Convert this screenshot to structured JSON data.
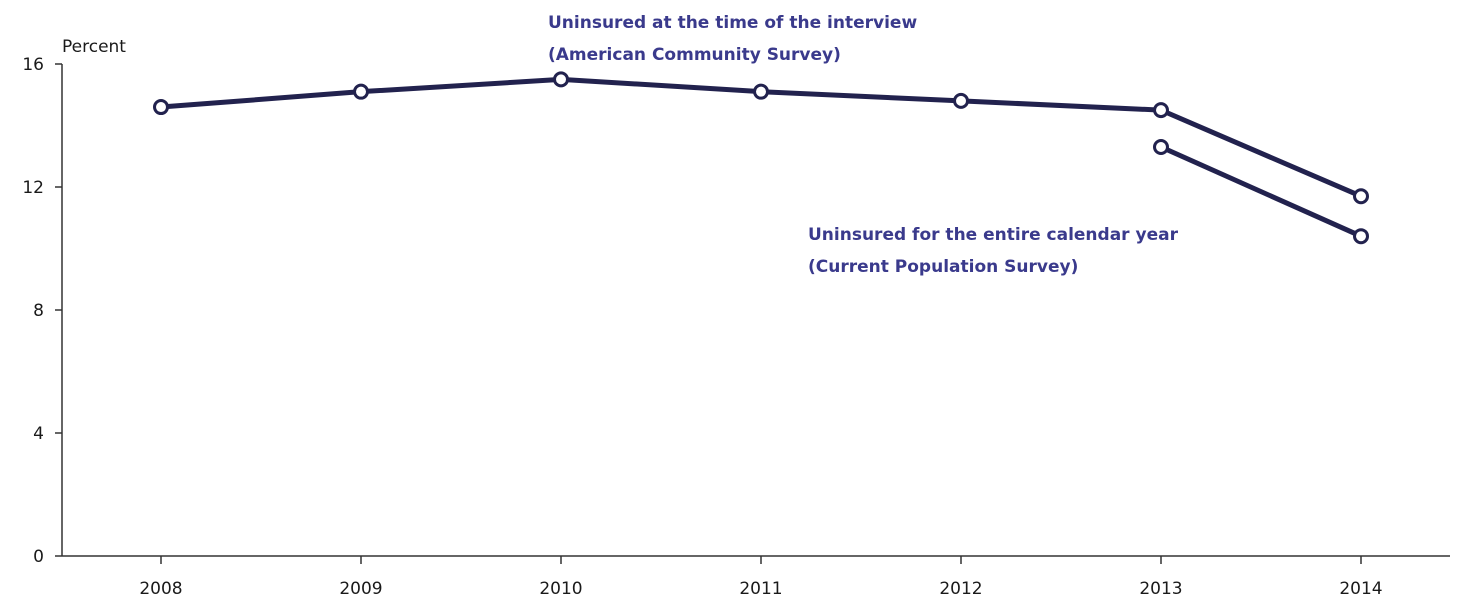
{
  "chart_data": {
    "type": "line",
    "ylabel": "Percent",
    "ylim": [
      0,
      16
    ],
    "yticks": [
      "0",
      "4",
      "8",
      "12",
      "16"
    ],
    "categories": [
      "2008",
      "2009",
      "2010",
      "2011",
      "2012",
      "2013",
      "2014"
    ],
    "series": [
      {
        "annotation_line1": "Uninsured at the time of the interview",
        "annotation_line2": "(American Community Survey)",
        "x": [
          "2008",
          "2009",
          "2010",
          "2011",
          "2012",
          "2013",
          "2014"
        ],
        "values": [
          14.6,
          15.1,
          15.5,
          15.1,
          14.8,
          14.5,
          11.7
        ]
      },
      {
        "annotation_line1": "Uninsured for the entire calendar year",
        "annotation_line2": "(Current Population Survey)",
        "x": [
          "2013",
          "2014"
        ],
        "values": [
          13.3,
          10.4
        ]
      }
    ],
    "line_color": "#22224e",
    "annotation_color": "#3a3a8c",
    "grid": false,
    "legend": "none"
  }
}
